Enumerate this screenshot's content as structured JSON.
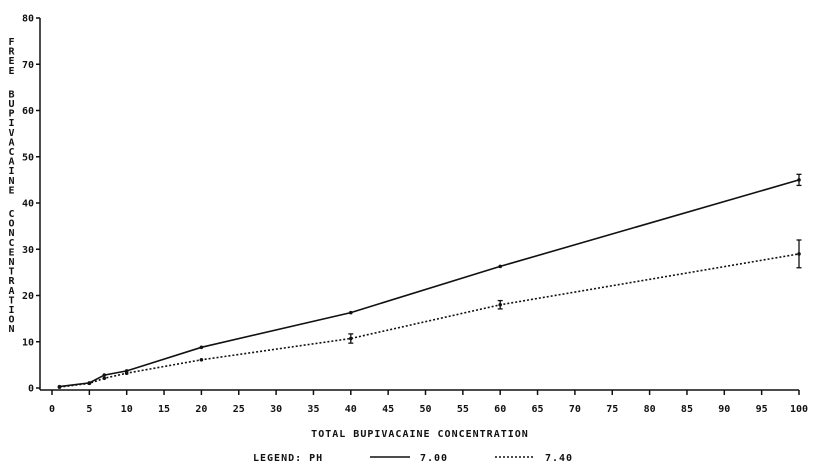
{
  "chart_data": {
    "type": "line",
    "title": "",
    "xlabel": "TOTAL BUPIVACAINE CONCENTRATION",
    "ylabel": "FREE BUPIVACAINE CONCENTRATION",
    "xlim": [
      0,
      100
    ],
    "ylim": [
      0,
      80
    ],
    "x_ticks": [
      0,
      5,
      10,
      15,
      20,
      25,
      30,
      35,
      40,
      45,
      50,
      55,
      60,
      65,
      70,
      75,
      80,
      85,
      90,
      95,
      100
    ],
    "y_ticks": [
      0,
      10,
      20,
      30,
      40,
      50,
      60,
      70,
      80
    ],
    "grid": false,
    "legend": {
      "title": "LEGEND: PH",
      "placement": "bottom-center"
    },
    "series": [
      {
        "name": "7.00",
        "style": "solid",
        "x": [
          1,
          5,
          7,
          10,
          20,
          40,
          60,
          100
        ],
        "y": [
          0.3,
          1.1,
          2.8,
          3.7,
          8.8,
          16.3,
          26.3,
          45.0
        ],
        "err": [
          0,
          0,
          0,
          0,
          0,
          0,
          0,
          1.2
        ]
      },
      {
        "name": "7.40",
        "style": "dotted",
        "x": [
          1,
          5,
          7,
          10,
          20,
          40,
          60,
          100
        ],
        "y": [
          0.2,
          1.0,
          2.1,
          3.2,
          6.1,
          10.7,
          18.0,
          29.0
        ],
        "err": [
          0,
          0,
          0,
          0,
          0,
          1.0,
          0.9,
          3.0
        ]
      }
    ]
  }
}
